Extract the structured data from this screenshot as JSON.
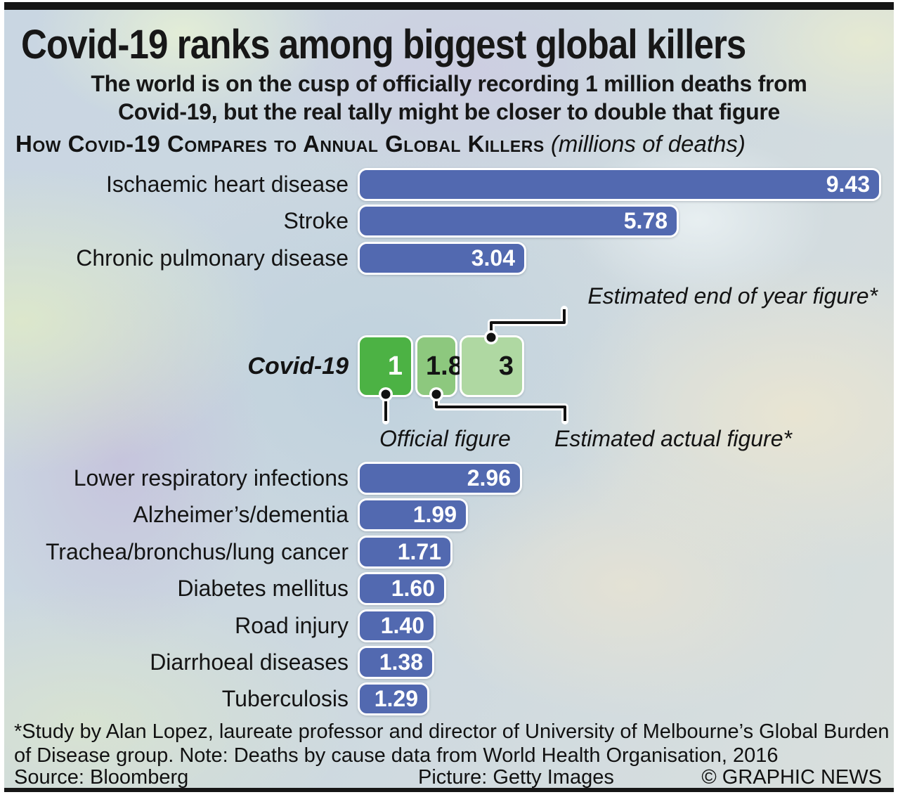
{
  "header": {
    "title": "Covid-19 ranks among biggest global killers",
    "subtitle_line1": "The world is on the cusp of officially recording 1 million deaths from",
    "subtitle_line2": "Covid-19, but the real tally might be closer to double that figure",
    "section_heading": "How Covid-19 Compares to Annual Global Killers",
    "section_note": " (millions of deaths)"
  },
  "chart_data": {
    "type": "bar",
    "title": "How Covid-19 Compares to Annual Global Killers",
    "unit": "millions of deaths",
    "xlim": [
      0,
      9.43
    ],
    "bar_color": "#5269b0",
    "top_group": [
      {
        "label": "Ischaemic heart disease",
        "value": 9.43,
        "display": "9.43"
      },
      {
        "label": "Stroke",
        "value": 5.78,
        "display": "5.78"
      },
      {
        "label": "Chronic pulmonary disease",
        "value": 3.04,
        "display": "3.04"
      }
    ],
    "covid": {
      "label": "Covid-19",
      "segments": [
        {
          "name": "Official figure",
          "value": 1,
          "display": "1",
          "color": "#4cb244",
          "text_color": "#ffffff",
          "align": "right"
        },
        {
          "name": "Estimated actual figure*",
          "value": 1.8,
          "display": "1.8",
          "color": "#8dc87e",
          "text_color": "#141414",
          "align": "center"
        },
        {
          "name": "Estimated end of year figure*",
          "value": 3,
          "display": "3",
          "color": "#afd8a2",
          "text_color": "#141414",
          "align": "right"
        }
      ]
    },
    "bottom_group": [
      {
        "label": "Lower respiratory infections",
        "value": 2.96,
        "display": "2.96"
      },
      {
        "label": "Alzheimer’s/dementia",
        "value": 1.99,
        "display": "1.99"
      },
      {
        "label": "Trachea/bronchus/lung cancer",
        "value": 1.71,
        "display": "1.71"
      },
      {
        "label": "Diabetes mellitus",
        "value": 1.6,
        "display": "1.60"
      },
      {
        "label": "Road injury",
        "value": 1.4,
        "display": "1.40"
      },
      {
        "label": "Diarrhoeal diseases",
        "value": 1.38,
        "display": "1.38"
      },
      {
        "label": "Tuberculosis",
        "value": 1.29,
        "display": "1.29"
      }
    ],
    "annotations": {
      "end_of_year": "Estimated end of year figure*",
      "official": "Official figure",
      "actual": "Estimated actual figure*"
    }
  },
  "footer": {
    "footnote_line1": "*Study by Alan Lopez, laureate professor and director of University of Melbourne’s Global Burden",
    "footnote_line2": "of Disease group. Note: Deaths by cause data from World Health Organisation, 2016",
    "source": "Source: Bloomberg",
    "picture": "Picture: Getty Images",
    "copyright": "© GRAPHIC NEWS"
  }
}
